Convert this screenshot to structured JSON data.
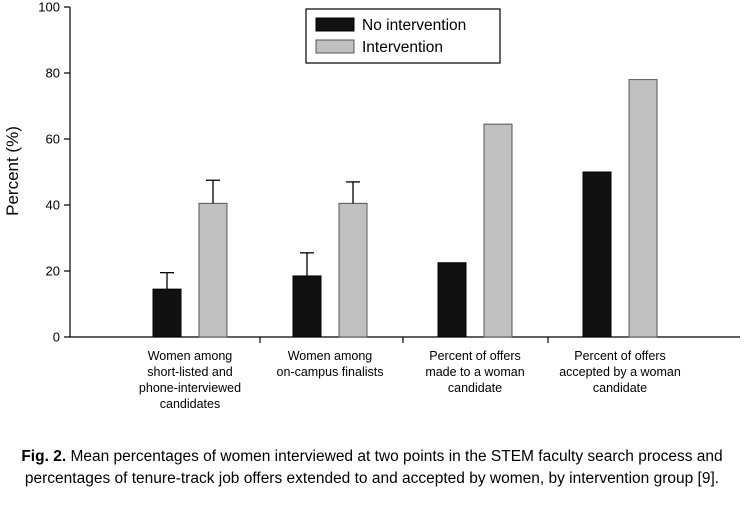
{
  "chart_data": {
    "type": "bar",
    "ylabel": "Percent (%)",
    "xlabel": "",
    "ylim": [
      0,
      100
    ],
    "yticks": [
      0,
      20,
      40,
      60,
      80,
      100
    ],
    "grid": false,
    "legend_position": "top-center",
    "categories": [
      [
        "Women among",
        "short-listed and",
        "phone-interviewed",
        "candidates"
      ],
      [
        "Women among",
        "on-campus finalists"
      ],
      [
        "Percent of offers",
        "made to a woman",
        "candidate"
      ],
      [
        "Percent of offers",
        "accepted by a woman",
        "candidate"
      ]
    ],
    "series": [
      {
        "name": "No intervention",
        "color": "#111111",
        "values": [
          14.5,
          18.5,
          22.5,
          50
        ],
        "error_upper": [
          19.5,
          25.5,
          null,
          null
        ]
      },
      {
        "name": "Intervention",
        "color": "#c0c0c0",
        "values": [
          40.5,
          40.5,
          64.5,
          78
        ],
        "error_upper": [
          47.5,
          47,
          null,
          null
        ]
      }
    ]
  },
  "caption": {
    "label": "Fig. 2.",
    "text": "Mean percentages of women interviewed at two points in the STEM faculty search process and percentages of tenure-track job offers extended to and accepted by women, by intervention group [9]."
  }
}
